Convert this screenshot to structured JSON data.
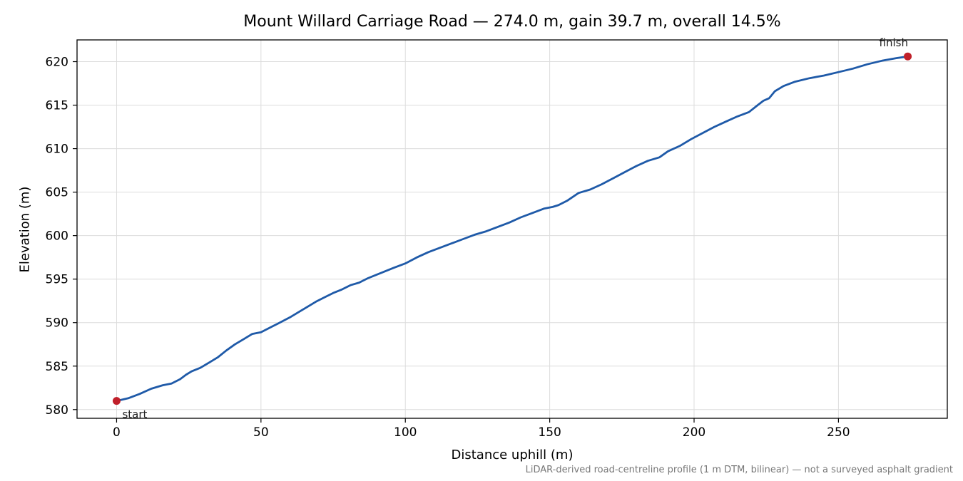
{
  "chart_data": {
    "type": "line",
    "title": "Mount Willard Carriage Road — 274.0 m, gain 39.7 m, overall 14.5%",
    "xlabel": "Distance uphill (m)",
    "ylabel": "Elevation (m)",
    "footnote": "LiDAR-derived road-centreline profile (1 m DTM, bilinear) — not a surveyed asphalt gradient",
    "xlim": [
      -13.7,
      287.7
    ],
    "ylim": [
      579.0,
      622.5
    ],
    "x_ticks": [
      0,
      50,
      100,
      150,
      200,
      250
    ],
    "y_ticks": [
      580,
      585,
      590,
      595,
      600,
      605,
      610,
      615,
      620
    ],
    "grid": true,
    "line_color": "#1f5aa8",
    "marker_color": "#c0202a",
    "series": [
      {
        "x": [
          0,
          4,
          8,
          12,
          16,
          19,
          22,
          24,
          26,
          29,
          32,
          35,
          38,
          41,
          44,
          47,
          50,
          53,
          56,
          60,
          63,
          66,
          69,
          72,
          75,
          78,
          81,
          84,
          87,
          90,
          93,
          96,
          100,
          104,
          108,
          112,
          116,
          120,
          124,
          128,
          132,
          136,
          140,
          144,
          148,
          151,
          153,
          156,
          160,
          164,
          168,
          172,
          176,
          180,
          184,
          188,
          191,
          195,
          199,
          203,
          207,
          211,
          215,
          219,
          222,
          224,
          226,
          228,
          231,
          235,
          240,
          245,
          250,
          255,
          260,
          265,
          270,
          274
        ],
        "y": [
          581.0,
          581.3,
          581.8,
          582.4,
          582.8,
          583.0,
          583.5,
          584.0,
          584.4,
          584.8,
          585.4,
          586.0,
          586.8,
          587.5,
          588.1,
          588.7,
          588.9,
          589.4,
          589.9,
          590.6,
          591.2,
          591.8,
          592.4,
          592.9,
          593.4,
          593.8,
          594.3,
          594.6,
          595.1,
          595.5,
          595.9,
          596.3,
          596.8,
          597.5,
          598.1,
          598.6,
          599.1,
          599.6,
          600.1,
          600.5,
          601.0,
          601.5,
          602.1,
          602.6,
          603.1,
          603.3,
          603.5,
          604.0,
          604.9,
          605.3,
          605.9,
          606.6,
          607.3,
          608.0,
          608.6,
          609.0,
          609.7,
          610.3,
          611.1,
          611.8,
          612.5,
          613.1,
          613.7,
          614.2,
          615.0,
          615.5,
          615.8,
          616.6,
          617.2,
          617.7,
          618.1,
          618.4,
          618.8,
          619.2,
          619.7,
          620.1,
          620.4,
          620.6
        ]
      }
    ],
    "annotations": [
      {
        "label": "start",
        "x": 0,
        "y": 581.0
      },
      {
        "label": "finish",
        "x": 274,
        "y": 620.6
      }
    ]
  }
}
